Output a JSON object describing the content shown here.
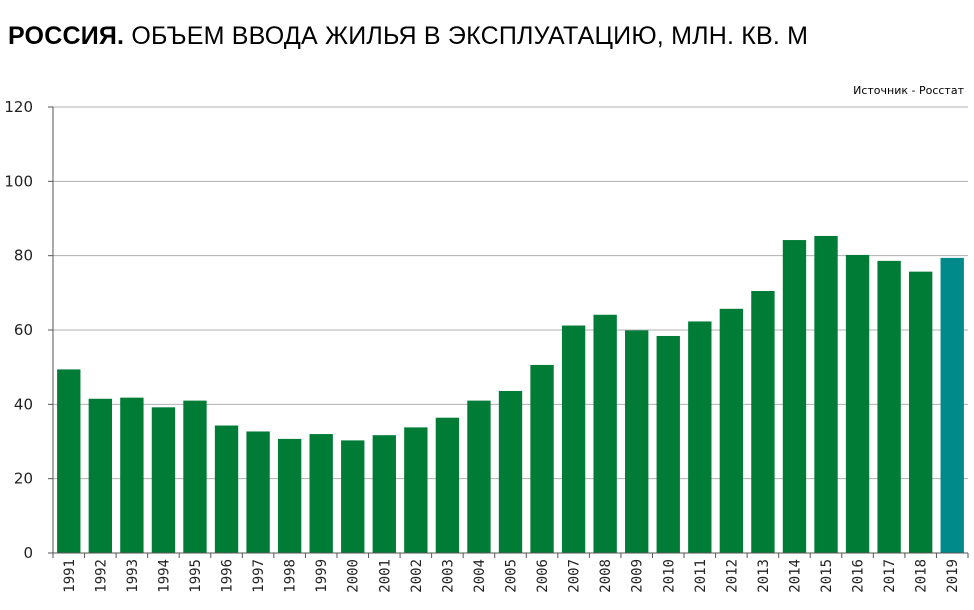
{
  "header": {
    "title_strong": "РОССИЯ.",
    "title_rest": "ОБЪЕМ ВВОДА  ЖИЛЬЯ В ЭКСПЛУАТАЦИЮ, МЛН. КВ. М",
    "source": "Источник  - Росстат"
  },
  "chart_data": {
    "type": "bar",
    "title": "РОССИЯ. ОБЪЕМ ВВОДА  ЖИЛЬЯ В ЭКСПЛУАТАЦИЮ, МЛН. КВ. М",
    "xlabel": "",
    "ylabel": "",
    "ylim": [
      0,
      120
    ],
    "yticks": [
      0,
      20,
      40,
      60,
      80,
      100,
      120
    ],
    "grid": true,
    "categories": [
      "1991",
      "1992",
      "1993",
      "1994",
      "1995",
      "1996",
      "1997",
      "1998",
      "1999",
      "2000",
      "2001",
      "2002",
      "2003",
      "2004",
      "2005",
      "2006",
      "2007",
      "2008",
      "2009",
      "2010",
      "2011",
      "2012",
      "2013",
      "2014",
      "2015",
      "2016",
      "2017",
      "2018",
      "2019"
    ],
    "values": [
      49.4,
      41.5,
      41.8,
      39.2,
      41.0,
      34.3,
      32.7,
      30.7,
      32.0,
      30.3,
      31.7,
      33.8,
      36.4,
      41.0,
      43.6,
      50.6,
      61.2,
      64.1,
      59.9,
      58.4,
      62.3,
      65.7,
      70.5,
      84.2,
      85.3,
      80.2,
      78.6,
      75.7,
      79.4
    ],
    "colors": {
      "bar": "#007c37",
      "highlight": "#008a8a",
      "grid": "#b0b0b0",
      "axis": "#555555"
    },
    "highlight_index": 28
  }
}
